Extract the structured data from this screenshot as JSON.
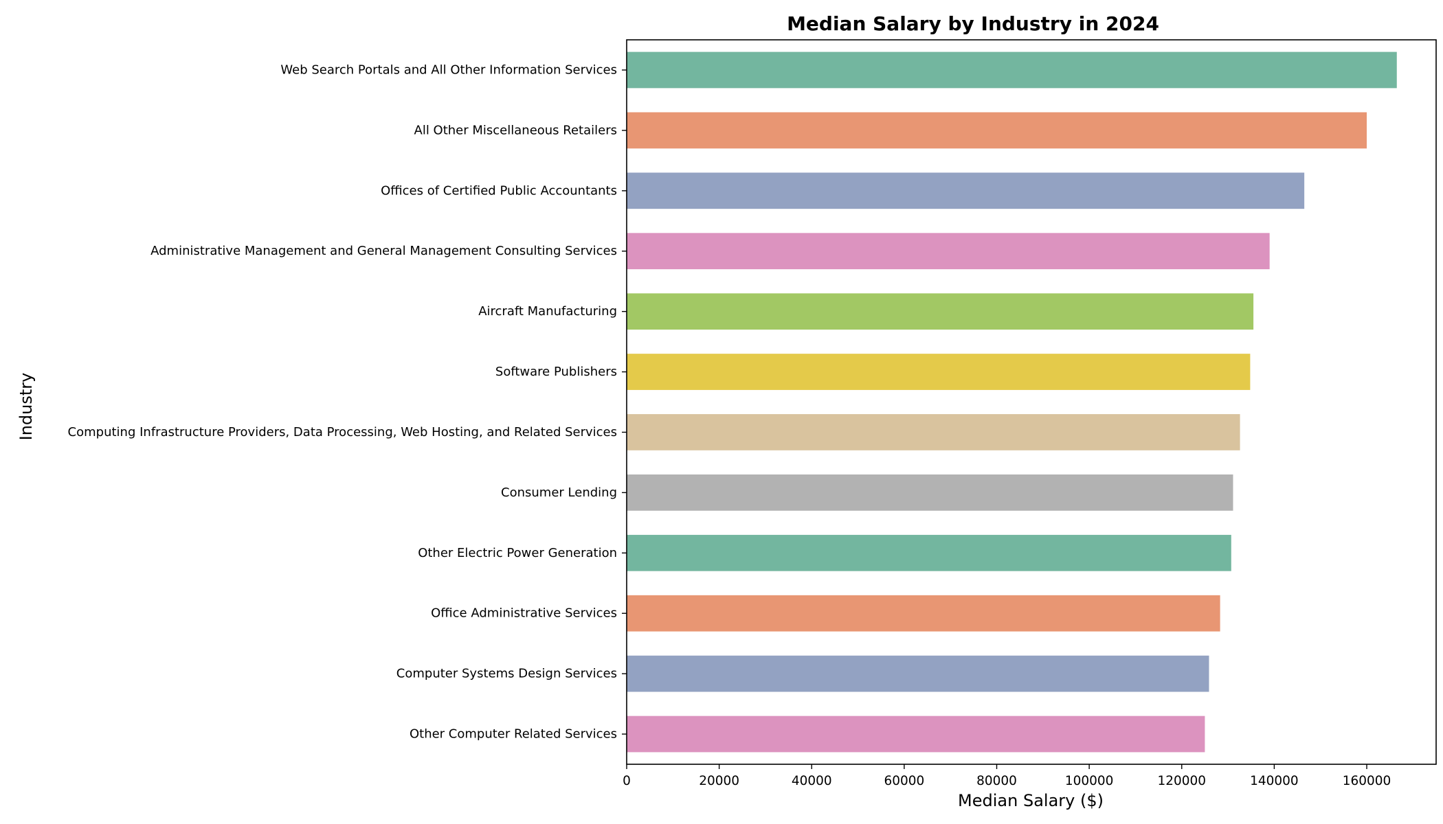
{
  "chart_data": {
    "type": "bar",
    "orientation": "horizontal",
    "title": "Median Salary by Industry in 2024",
    "xlabel": "Median Salary ($)",
    "ylabel": "Industry",
    "xlim": [
      0,
      175000
    ],
    "xticks": [
      0,
      20000,
      40000,
      60000,
      80000,
      100000,
      120000,
      140000,
      160000
    ],
    "grid": false,
    "categories": [
      "Web Search Portals and All Other Information Services",
      "All Other Miscellaneous Retailers",
      "Offices of Certified Public Accountants",
      "Administrative Management and General Management Consulting Services",
      "Aircraft Manufacturing",
      "Software Publishers",
      "Computing Infrastructure Providers, Data Processing, Web Hosting, and Related Services",
      "Consumer Lending",
      "Other Electric Power Generation",
      "Office Administrative Services",
      "Computer Systems Design Services",
      "Other Computer Related Services"
    ],
    "values": [
      166500,
      160000,
      146500,
      139000,
      135500,
      134800,
      132600,
      131100,
      130700,
      128300,
      125900,
      125000
    ],
    "colors": [
      "#73b69f",
      "#e89673",
      "#93a2c2",
      "#dc93bf",
      "#a2c864",
      "#e4ca4a",
      "#d9c39e",
      "#b2b2b2",
      "#73b69f",
      "#e89673",
      "#93a2c2",
      "#dc93bf"
    ]
  }
}
